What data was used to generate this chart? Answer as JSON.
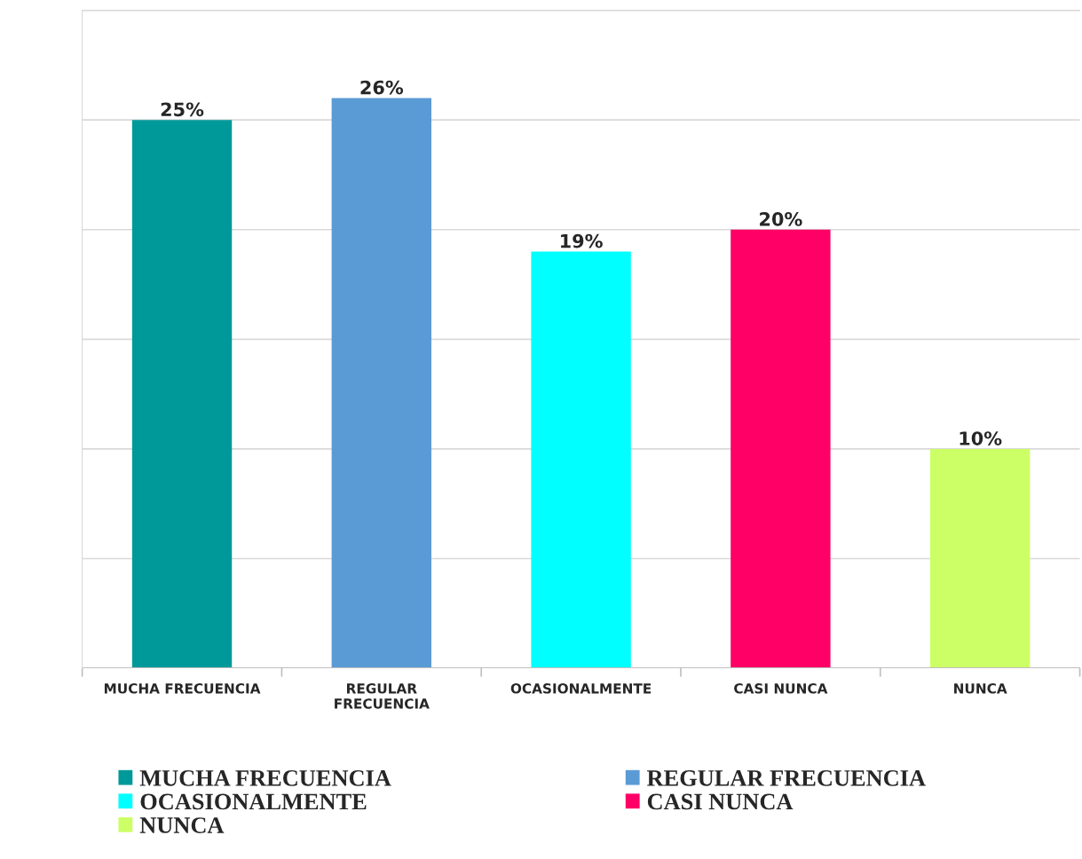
{
  "chart_data": {
    "type": "bar",
    "categories": [
      "MUCHA FRECUENCIA",
      "REGULAR FRECUENCIA",
      "OCASIONALMENTE",
      "CASI NUNCA",
      "NUNCA"
    ],
    "series": [
      {
        "name": "MUCHA FRECUENCIA",
        "color": "#009999",
        "values": [
          25,
          null,
          null,
          null,
          null
        ],
        "value_labels": [
          "25%",
          null,
          null,
          null,
          null
        ]
      },
      {
        "name": "REGULAR FRECUENCIA",
        "color": "#5b9bd5",
        "values": [
          null,
          26,
          null,
          null,
          null
        ],
        "value_labels": [
          null,
          "26%",
          null,
          null,
          null
        ]
      },
      {
        "name": "OCASIONALMENTE",
        "color": "#00ffff",
        "values": [
          null,
          null,
          19,
          null,
          null
        ],
        "value_labels": [
          null,
          null,
          "19%",
          null,
          null
        ]
      },
      {
        "name": "CASI NUNCA",
        "color": "#ff0066",
        "values": [
          null,
          null,
          null,
          20,
          null
        ],
        "value_labels": [
          null,
          null,
          null,
          "20%",
          null
        ]
      },
      {
        "name": "NUNCA",
        "color": "#ccff66",
        "values": [
          null,
          null,
          null,
          null,
          10
        ],
        "value_labels": [
          null,
          null,
          null,
          null,
          "10%"
        ]
      }
    ],
    "ylim": [
      0,
      30
    ],
    "yticks": [
      {
        "value": 0,
        "label": null
      },
      {
        "value": 5,
        "label": null
      },
      {
        "value": 10,
        "label": null
      },
      {
        "value": 15,
        "label": null
      },
      {
        "value": 20,
        "label": null
      },
      {
        "value": 25,
        "label": null
      },
      {
        "value": 30,
        "label": null
      }
    ],
    "tick_labels": "x",
    "grid": "y",
    "legend": "bottom"
  }
}
